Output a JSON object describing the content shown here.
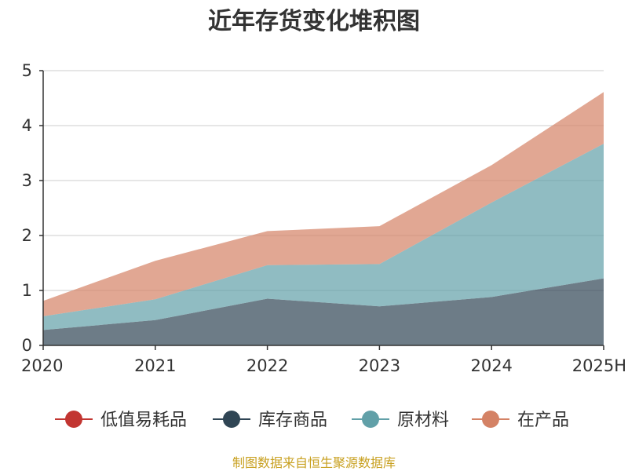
{
  "chart_data": {
    "type": "area",
    "stacked": true,
    "title": "近年存货变化堆积图",
    "ylabel": "",
    "x": [
      "2020",
      "2021",
      "2022",
      "2023",
      "2024",
      "2025H"
    ],
    "ylim": [
      0,
      5
    ],
    "yticks": [
      "0",
      "1",
      "2",
      "3",
      "4",
      "5"
    ],
    "grid": true,
    "legend_position": "bottom",
    "series": [
      {
        "name": "低值易耗品",
        "color": "#c23531",
        "values": [
          0,
          0,
          0,
          0,
          0,
          0
        ]
      },
      {
        "name": "库存商品",
        "color": "#2f4554",
        "values": [
          0.28,
          0.46,
          0.85,
          0.71,
          0.88,
          1.22
        ]
      },
      {
        "name": "原材料",
        "color": "#61a0a8",
        "values": [
          0.25,
          0.38,
          0.61,
          0.77,
          1.72,
          2.45
        ]
      },
      {
        "name": "在产品",
        "color": "#d48265",
        "values": [
          0.28,
          0.7,
          0.62,
          0.69,
          0.68,
          0.94
        ]
      }
    ]
  },
  "source": "制图数据来自恒生聚源数据库"
}
